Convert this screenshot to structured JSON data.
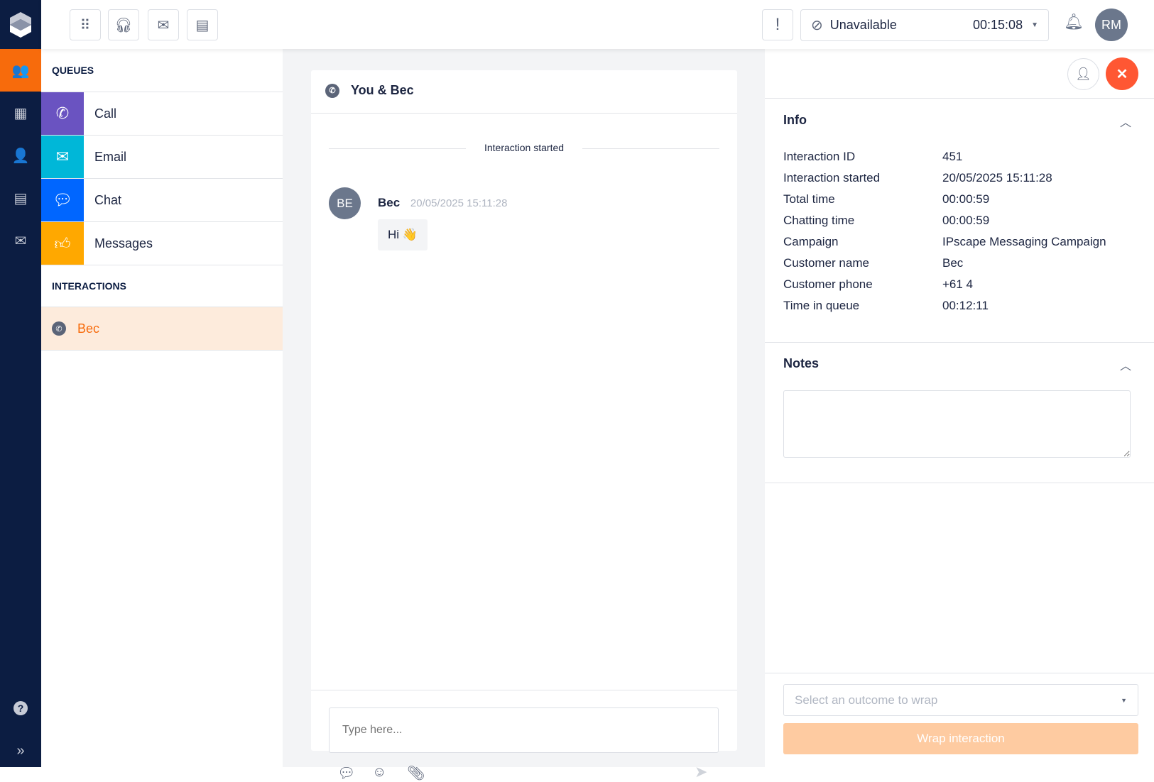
{
  "rail": {
    "items": [
      {
        "icon": "queues-icon",
        "active": true
      },
      {
        "icon": "calendar-icon"
      },
      {
        "icon": "agent-callback-icon"
      },
      {
        "icon": "messages-icon"
      },
      {
        "icon": "email-icon"
      }
    ],
    "help_icon": "help-icon",
    "expand_icon": "expand-icon",
    "active_color": "#f76b0c"
  },
  "topbar": {
    "buttons": [
      "dialpad-icon",
      "headset-icon",
      "email-icon",
      "contacts-book-icon"
    ],
    "alert_label": "!",
    "status": {
      "label": "Unavailable",
      "timer": "00:15:08"
    },
    "avatar": "RM"
  },
  "queues": {
    "header": "QUEUES",
    "items": [
      {
        "label": "Call",
        "color": "#6a53c1",
        "icon": "phone-icon"
      },
      {
        "label": "Email",
        "color": "#00b7d8",
        "icon": "email-icon"
      },
      {
        "label": "Chat",
        "color": "#0066ff",
        "icon": "chat-icon"
      },
      {
        "label": "Messages",
        "color": "#ffa800",
        "icon": "thumbs-up-icon"
      }
    ],
    "interactions_header": "INTERACTIONS",
    "interactions": [
      {
        "label": "Bec",
        "icon": "whatsapp-icon"
      }
    ]
  },
  "chat": {
    "title": "You & Bec",
    "divider": "Interaction started",
    "messages": [
      {
        "avatar": "BE",
        "sender": "Bec",
        "time": "20/05/2025 15:11:28",
        "text": "Hi 👋"
      }
    ],
    "input_placeholder": "Type here..."
  },
  "info": {
    "title": "Info",
    "rows": [
      {
        "label": "Interaction ID",
        "value": "451"
      },
      {
        "label": "Interaction started",
        "value": "20/05/2025 15:11:28"
      },
      {
        "label": "Total time",
        "value": "00:00:59"
      },
      {
        "label": "Chatting time",
        "value": "00:00:59"
      },
      {
        "label": "Campaign",
        "value": "IPscape Messaging Campaign"
      },
      {
        "label": "Customer name",
        "value": "Bec"
      },
      {
        "label": "Customer phone",
        "value": "+61 4"
      },
      {
        "label": "Time in queue",
        "value": "00:12:11"
      }
    ]
  },
  "notes": {
    "title": "Notes",
    "value": ""
  },
  "wrap": {
    "select_placeholder": "Select an outcome to wrap",
    "button_label": "Wrap interaction",
    "button_color": "#fecba1"
  }
}
